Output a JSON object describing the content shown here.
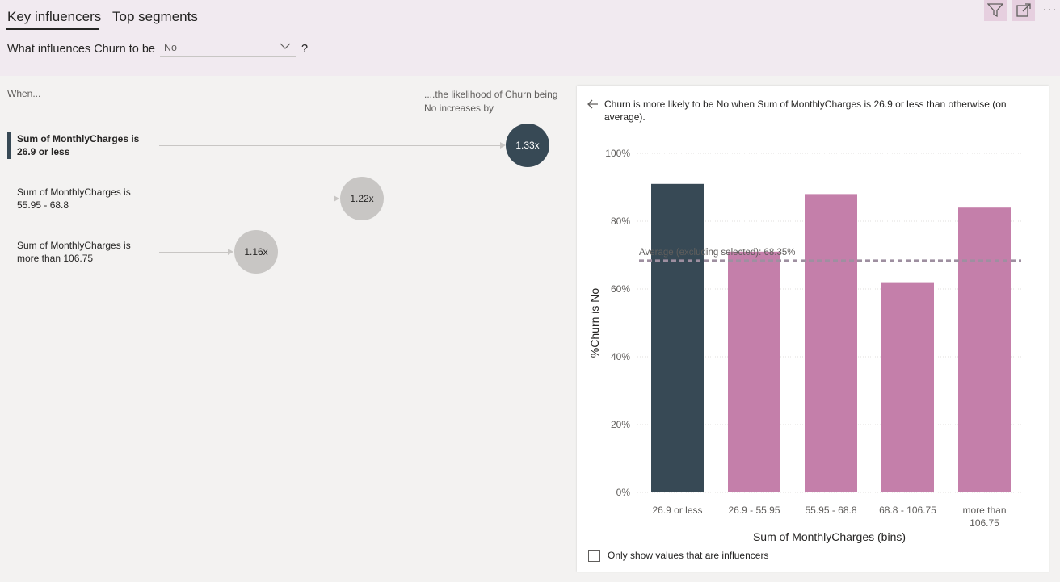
{
  "tabs": [
    {
      "label": "Key influencers",
      "active": true
    },
    {
      "label": "Top segments",
      "active": false
    }
  ],
  "question": {
    "prefix": "What influences Churn to be",
    "selected_value": "No",
    "suffix": "?"
  },
  "header_actions": [
    "filter-icon",
    "focus-mode-icon",
    "more-options-icon"
  ],
  "influencer_list": {
    "when_label": "When...",
    "likelihood_label": "....the likelihood of Churn being No increases by",
    "items": [
      {
        "label": "Sum of MonthlyCharges is 26.9 or less",
        "factor": "1.33x",
        "factor_value": 1.33,
        "selected": true
      },
      {
        "label": "Sum of MonthlyCharges is 55.95 - 68.8",
        "factor": "1.22x",
        "factor_value": 1.22,
        "selected": false
      },
      {
        "label": "Sum of MonthlyCharges is more than 106.75",
        "factor": "1.16x",
        "factor_value": 1.16,
        "selected": false
      }
    ]
  },
  "detail": {
    "description": "Churn is more likely to be No when Sum of MonthlyCharges is 26.9 or less than otherwise (on average).",
    "checkbox_label": "Only show values that are influencers",
    "checkbox_checked": false
  },
  "colors": {
    "selected": "#374955",
    "bar": "#c47faa",
    "bubble_unselected": "#c8c6c4",
    "average_line": "#9e8fa0",
    "header_bg": "#f1eaf0"
  },
  "chart_data": {
    "type": "bar",
    "categories": [
      "26.9 or less",
      "26.9 - 55.95",
      "55.95 - 68.8",
      "68.8 - 106.75",
      "more than 106.75"
    ],
    "values": [
      91,
      71,
      88,
      62,
      84
    ],
    "highlighted_index": 0,
    "xlabel": "Sum of MonthlyCharges (bins)",
    "ylabel": "%Churn is No",
    "ylim": [
      0,
      100
    ],
    "yticks": [
      "0%",
      "20%",
      "40%",
      "60%",
      "80%",
      "100%"
    ],
    "ytick_values": [
      0,
      20,
      40,
      60,
      80,
      100
    ],
    "average_line": {
      "value": 68.35,
      "label": "Average (excluding selected): 68.35%"
    }
  }
}
